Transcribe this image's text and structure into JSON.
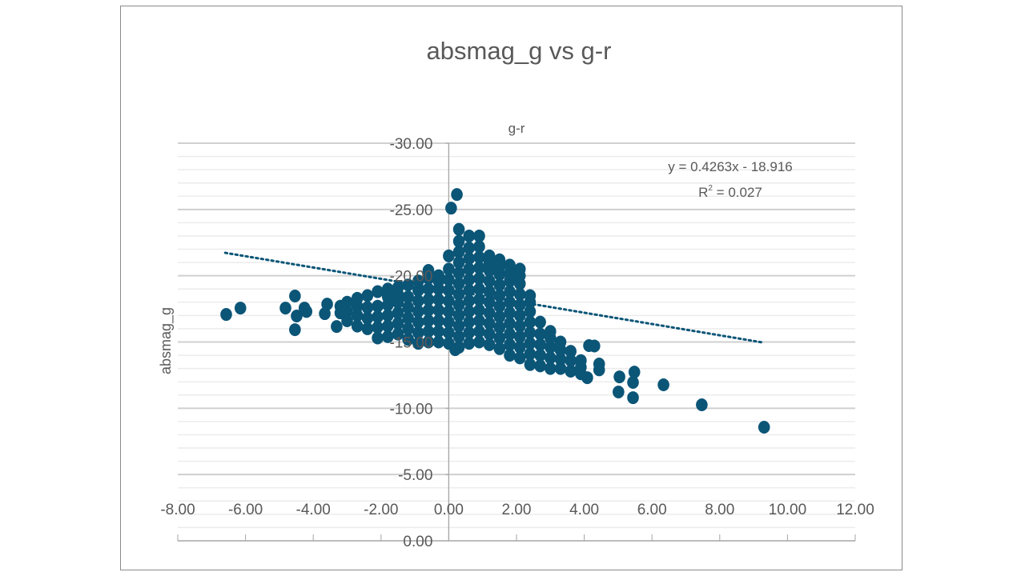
{
  "chart_data": {
    "type": "scatter",
    "title": "absmag_g vs g-r",
    "xlabel": "g-r",
    "ylabel": "absmag_g",
    "xlim": [
      -8,
      12
    ],
    "ylim": [
      0,
      -30
    ],
    "y_axis_reversed": true,
    "x_ticks": [
      "-8.00",
      "-6.00",
      "-4.00",
      "-2.00",
      "0.00",
      "2.00",
      "4.00",
      "6.00",
      "8.00",
      "10.00",
      "12.00"
    ],
    "y_ticks": [
      "-30.00",
      "-25.00",
      "-20.00",
      "-15.00",
      "-10.00",
      "-5.00",
      "0.00"
    ],
    "grid": {
      "major": true,
      "minor": true
    },
    "marker_color": "#0b5577",
    "trendline": {
      "type": "linear",
      "slope": 0.4263,
      "intercept": -18.916,
      "x_range": [
        -6.6,
        9.3
      ],
      "equation_label": "y = 0.4263x - 18.916",
      "r2_label_prefix": "R",
      "r2_label_sup": "2",
      "r2_label_value": " = 0.027",
      "style": "dotted",
      "color": "#0b5577"
    },
    "points": [
      [
        -6.57,
        -17.08
      ],
      [
        -6.15,
        -17.56
      ],
      [
        -4.82,
        -17.56
      ],
      [
        -4.54,
        -18.47
      ],
      [
        -4.49,
        -16.96
      ],
      [
        -4.54,
        -15.93
      ],
      [
        -4.26,
        -17.56
      ],
      [
        -4.2,
        -17.3
      ],
      [
        -3.66,
        -17.14
      ],
      [
        -3.59,
        -17.86
      ],
      [
        -3.31,
        -16.17
      ],
      [
        -3.2,
        -17.7
      ],
      [
        -3.2,
        -17.2
      ],
      [
        0.19,
        -14.42
      ],
      [
        0.07,
        -25.1
      ],
      [
        0.24,
        -26.13
      ],
      [
        4.14,
        -14.73
      ],
      [
        4.3,
        -14.7
      ],
      [
        4.09,
        -12.31
      ],
      [
        4.44,
        -13.34
      ],
      [
        4.44,
        -12.9
      ],
      [
        5.04,
        -12.37
      ],
      [
        5.01,
        -11.23
      ],
      [
        5.44,
        -11.95
      ],
      [
        5.48,
        -12.73
      ],
      [
        5.44,
        -10.8
      ],
      [
        6.34,
        -11.77
      ],
      [
        7.47,
        -10.26
      ],
      [
        9.31,
        -8.57
      ],
      [
        -3.0,
        -16.6
      ],
      [
        -3.0,
        -17.3
      ],
      [
        -3.0,
        -18.0
      ],
      [
        -2.7,
        -16.2
      ],
      [
        -2.7,
        -17.0
      ],
      [
        -2.7,
        -17.7
      ],
      [
        -2.7,
        -18.3
      ],
      [
        -2.4,
        -16.0
      ],
      [
        -2.4,
        -16.8
      ],
      [
        -2.4,
        -17.6
      ],
      [
        -2.4,
        -18.5
      ],
      [
        -2.1,
        -15.3
      ],
      [
        -2.1,
        -16.1
      ],
      [
        -2.1,
        -16.9
      ],
      [
        -2.1,
        -17.7
      ],
      [
        -2.1,
        -18.8
      ],
      [
        -1.8,
        -15.4
      ],
      [
        -1.8,
        -16.2
      ],
      [
        -1.8,
        -17.0
      ],
      [
        -1.8,
        -17.8
      ],
      [
        -1.8,
        -18.4
      ],
      [
        -1.8,
        -19.0
      ],
      [
        -1.5,
        -15.6
      ],
      [
        -1.5,
        -16.4
      ],
      [
        -1.5,
        -17.2
      ],
      [
        -1.5,
        -18.0
      ],
      [
        -1.5,
        -18.6
      ],
      [
        -1.5,
        -19.1
      ],
      [
        -1.2,
        -15.2
      ],
      [
        -1.2,
        -16.0
      ],
      [
        -1.2,
        -16.8
      ],
      [
        -1.2,
        -17.6
      ],
      [
        -1.2,
        -18.4
      ],
      [
        -1.2,
        -19.3
      ],
      [
        -0.9,
        -14.9
      ],
      [
        -0.9,
        -15.7
      ],
      [
        -0.9,
        -16.5
      ],
      [
        -0.9,
        -17.3
      ],
      [
        -0.9,
        -18.1
      ],
      [
        -0.9,
        -18.9
      ],
      [
        -0.9,
        -19.6
      ],
      [
        -0.6,
        -15.0
      ],
      [
        -0.6,
        -15.8
      ],
      [
        -0.6,
        -16.6
      ],
      [
        -0.6,
        -17.4
      ],
      [
        -0.6,
        -18.2
      ],
      [
        -0.6,
        -19.0
      ],
      [
        -0.6,
        -19.8
      ],
      [
        -0.6,
        -20.4
      ],
      [
        -0.3,
        -15.0
      ],
      [
        -0.3,
        -15.8
      ],
      [
        -0.3,
        -16.6
      ],
      [
        -0.3,
        -17.4
      ],
      [
        -0.3,
        -18.2
      ],
      [
        -0.3,
        -19.0
      ],
      [
        -0.3,
        -19.6
      ],
      [
        -0.3,
        -20.0
      ],
      [
        0.0,
        -14.9
      ],
      [
        0.0,
        -15.7
      ],
      [
        0.0,
        -16.5
      ],
      [
        0.0,
        -17.3
      ],
      [
        0.0,
        -18.1
      ],
      [
        0.0,
        -18.9
      ],
      [
        0.0,
        -19.7
      ],
      [
        0.0,
        -20.5
      ],
      [
        0.0,
        -21.5
      ],
      [
        0.3,
        -14.6
      ],
      [
        0.3,
        -15.4
      ],
      [
        0.3,
        -16.2
      ],
      [
        0.3,
        -17.0
      ],
      [
        0.3,
        -17.8
      ],
      [
        0.3,
        -18.6
      ],
      [
        0.3,
        -19.4
      ],
      [
        0.3,
        -20.2
      ],
      [
        0.3,
        -21.0
      ],
      [
        0.3,
        -21.8
      ],
      [
        0.3,
        -22.6
      ],
      [
        0.3,
        -23.5
      ],
      [
        0.6,
        -14.9
      ],
      [
        0.6,
        -15.7
      ],
      [
        0.6,
        -16.5
      ],
      [
        0.6,
        -17.3
      ],
      [
        0.6,
        -18.1
      ],
      [
        0.6,
        -18.9
      ],
      [
        0.6,
        -19.7
      ],
      [
        0.6,
        -20.5
      ],
      [
        0.6,
        -21.3
      ],
      [
        0.6,
        -22.1
      ],
      [
        0.6,
        -23.0
      ],
      [
        0.9,
        -15.0
      ],
      [
        0.9,
        -15.8
      ],
      [
        0.9,
        -16.6
      ],
      [
        0.9,
        -17.4
      ],
      [
        0.9,
        -18.2
      ],
      [
        0.9,
        -19.0
      ],
      [
        0.9,
        -19.8
      ],
      [
        0.9,
        -20.6
      ],
      [
        0.9,
        -21.4
      ],
      [
        0.9,
        -22.2
      ],
      [
        0.9,
        -23.0
      ],
      [
        1.2,
        -14.8
      ],
      [
        1.2,
        -15.6
      ],
      [
        1.2,
        -16.4
      ],
      [
        1.2,
        -17.2
      ],
      [
        1.2,
        -18.0
      ],
      [
        1.2,
        -18.8
      ],
      [
        1.2,
        -19.6
      ],
      [
        1.2,
        -20.4
      ],
      [
        1.2,
        -21.0
      ],
      [
        1.2,
        -21.5
      ],
      [
        1.5,
        -14.5
      ],
      [
        1.5,
        -15.3
      ],
      [
        1.5,
        -16.1
      ],
      [
        1.5,
        -16.9
      ],
      [
        1.5,
        -17.7
      ],
      [
        1.5,
        -18.5
      ],
      [
        1.5,
        -19.3
      ],
      [
        1.5,
        -20.1
      ],
      [
        1.5,
        -20.7
      ],
      [
        1.5,
        -21.2
      ],
      [
        1.8,
        -14.0
      ],
      [
        1.8,
        -14.8
      ],
      [
        1.8,
        -15.6
      ],
      [
        1.8,
        -16.4
      ],
      [
        1.8,
        -17.2
      ],
      [
        1.8,
        -18.0
      ],
      [
        1.8,
        -18.8
      ],
      [
        1.8,
        -19.6
      ],
      [
        1.8,
        -20.2
      ],
      [
        1.8,
        -20.8
      ],
      [
        2.1,
        -13.8
      ],
      [
        2.1,
        -14.6
      ],
      [
        2.1,
        -15.4
      ],
      [
        2.1,
        -16.2
      ],
      [
        2.1,
        -17.0
      ],
      [
        2.1,
        -17.8
      ],
      [
        2.1,
        -18.6
      ],
      [
        2.1,
        -19.4
      ],
      [
        2.1,
        -20.0
      ],
      [
        2.1,
        -20.5
      ],
      [
        2.4,
        -13.3
      ],
      [
        2.4,
        -14.1
      ],
      [
        2.4,
        -14.9
      ],
      [
        2.4,
        -15.7
      ],
      [
        2.4,
        -16.5
      ],
      [
        2.4,
        -17.3
      ],
      [
        2.4,
        -18.0
      ],
      [
        2.4,
        -18.5
      ],
      [
        2.7,
        -13.2
      ],
      [
        2.7,
        -14.0
      ],
      [
        2.7,
        -14.8
      ],
      [
        2.7,
        -15.6
      ],
      [
        2.7,
        -16.5
      ],
      [
        3.0,
        -13.0
      ],
      [
        3.0,
        -13.8
      ],
      [
        3.0,
        -14.6
      ],
      [
        3.0,
        -15.3
      ],
      [
        3.0,
        -15.8
      ],
      [
        3.3,
        -13.0
      ],
      [
        3.3,
        -13.7
      ],
      [
        3.3,
        -14.4
      ],
      [
        3.3,
        -15.0
      ],
      [
        3.6,
        -12.8
      ],
      [
        3.6,
        -13.6
      ],
      [
        3.6,
        -14.3
      ],
      [
        3.9,
        -12.6
      ],
      [
        3.9,
        -13.1
      ],
      [
        3.9,
        -13.6
      ]
    ]
  }
}
